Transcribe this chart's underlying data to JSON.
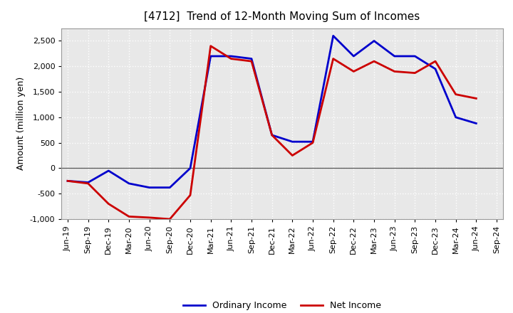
{
  "title": "[4712]  Trend of 12-Month Moving Sum of Incomes",
  "ylabel": "Amount (million yen)",
  "xlabels": [
    "Jun-19",
    "Sep-19",
    "Dec-19",
    "Mar-20",
    "Jun-20",
    "Sep-20",
    "Dec-20",
    "Mar-21",
    "Jun-21",
    "Sep-21",
    "Dec-21",
    "Mar-22",
    "Jun-22",
    "Sep-22",
    "Dec-22",
    "Mar-23",
    "Jun-23",
    "Sep-23",
    "Dec-23",
    "Mar-24",
    "Jun-24",
    "Sep-24"
  ],
  "ordinary_income": [
    -250,
    -280,
    -50,
    -300,
    -380,
    -380,
    0,
    2200,
    2200,
    2150,
    650,
    520,
    520,
    2600,
    2200,
    2500,
    2200,
    2200,
    1950,
    1000,
    880,
    null
  ],
  "net_income": [
    -250,
    -300,
    -700,
    -950,
    -970,
    -1000,
    -530,
    2400,
    2150,
    2100,
    650,
    250,
    500,
    2150,
    1900,
    2100,
    1900,
    1870,
    2100,
    1450,
    1370,
    null
  ],
  "ordinary_color": "#0000cc",
  "net_color": "#cc0000",
  "ylim": [
    -1000,
    2750
  ],
  "yticks": [
    -1000,
    -500,
    0,
    500,
    1000,
    1500,
    2000,
    2500
  ],
  "background_color": "#ffffff",
  "plot_bg_color": "#e8e8e8",
  "grid_color": "#ffffff",
  "zero_line_color": "#555555",
  "title_fontsize": 11,
  "axis_fontsize": 9,
  "tick_fontsize": 8,
  "legend_fontsize": 9,
  "line_width": 2.0
}
